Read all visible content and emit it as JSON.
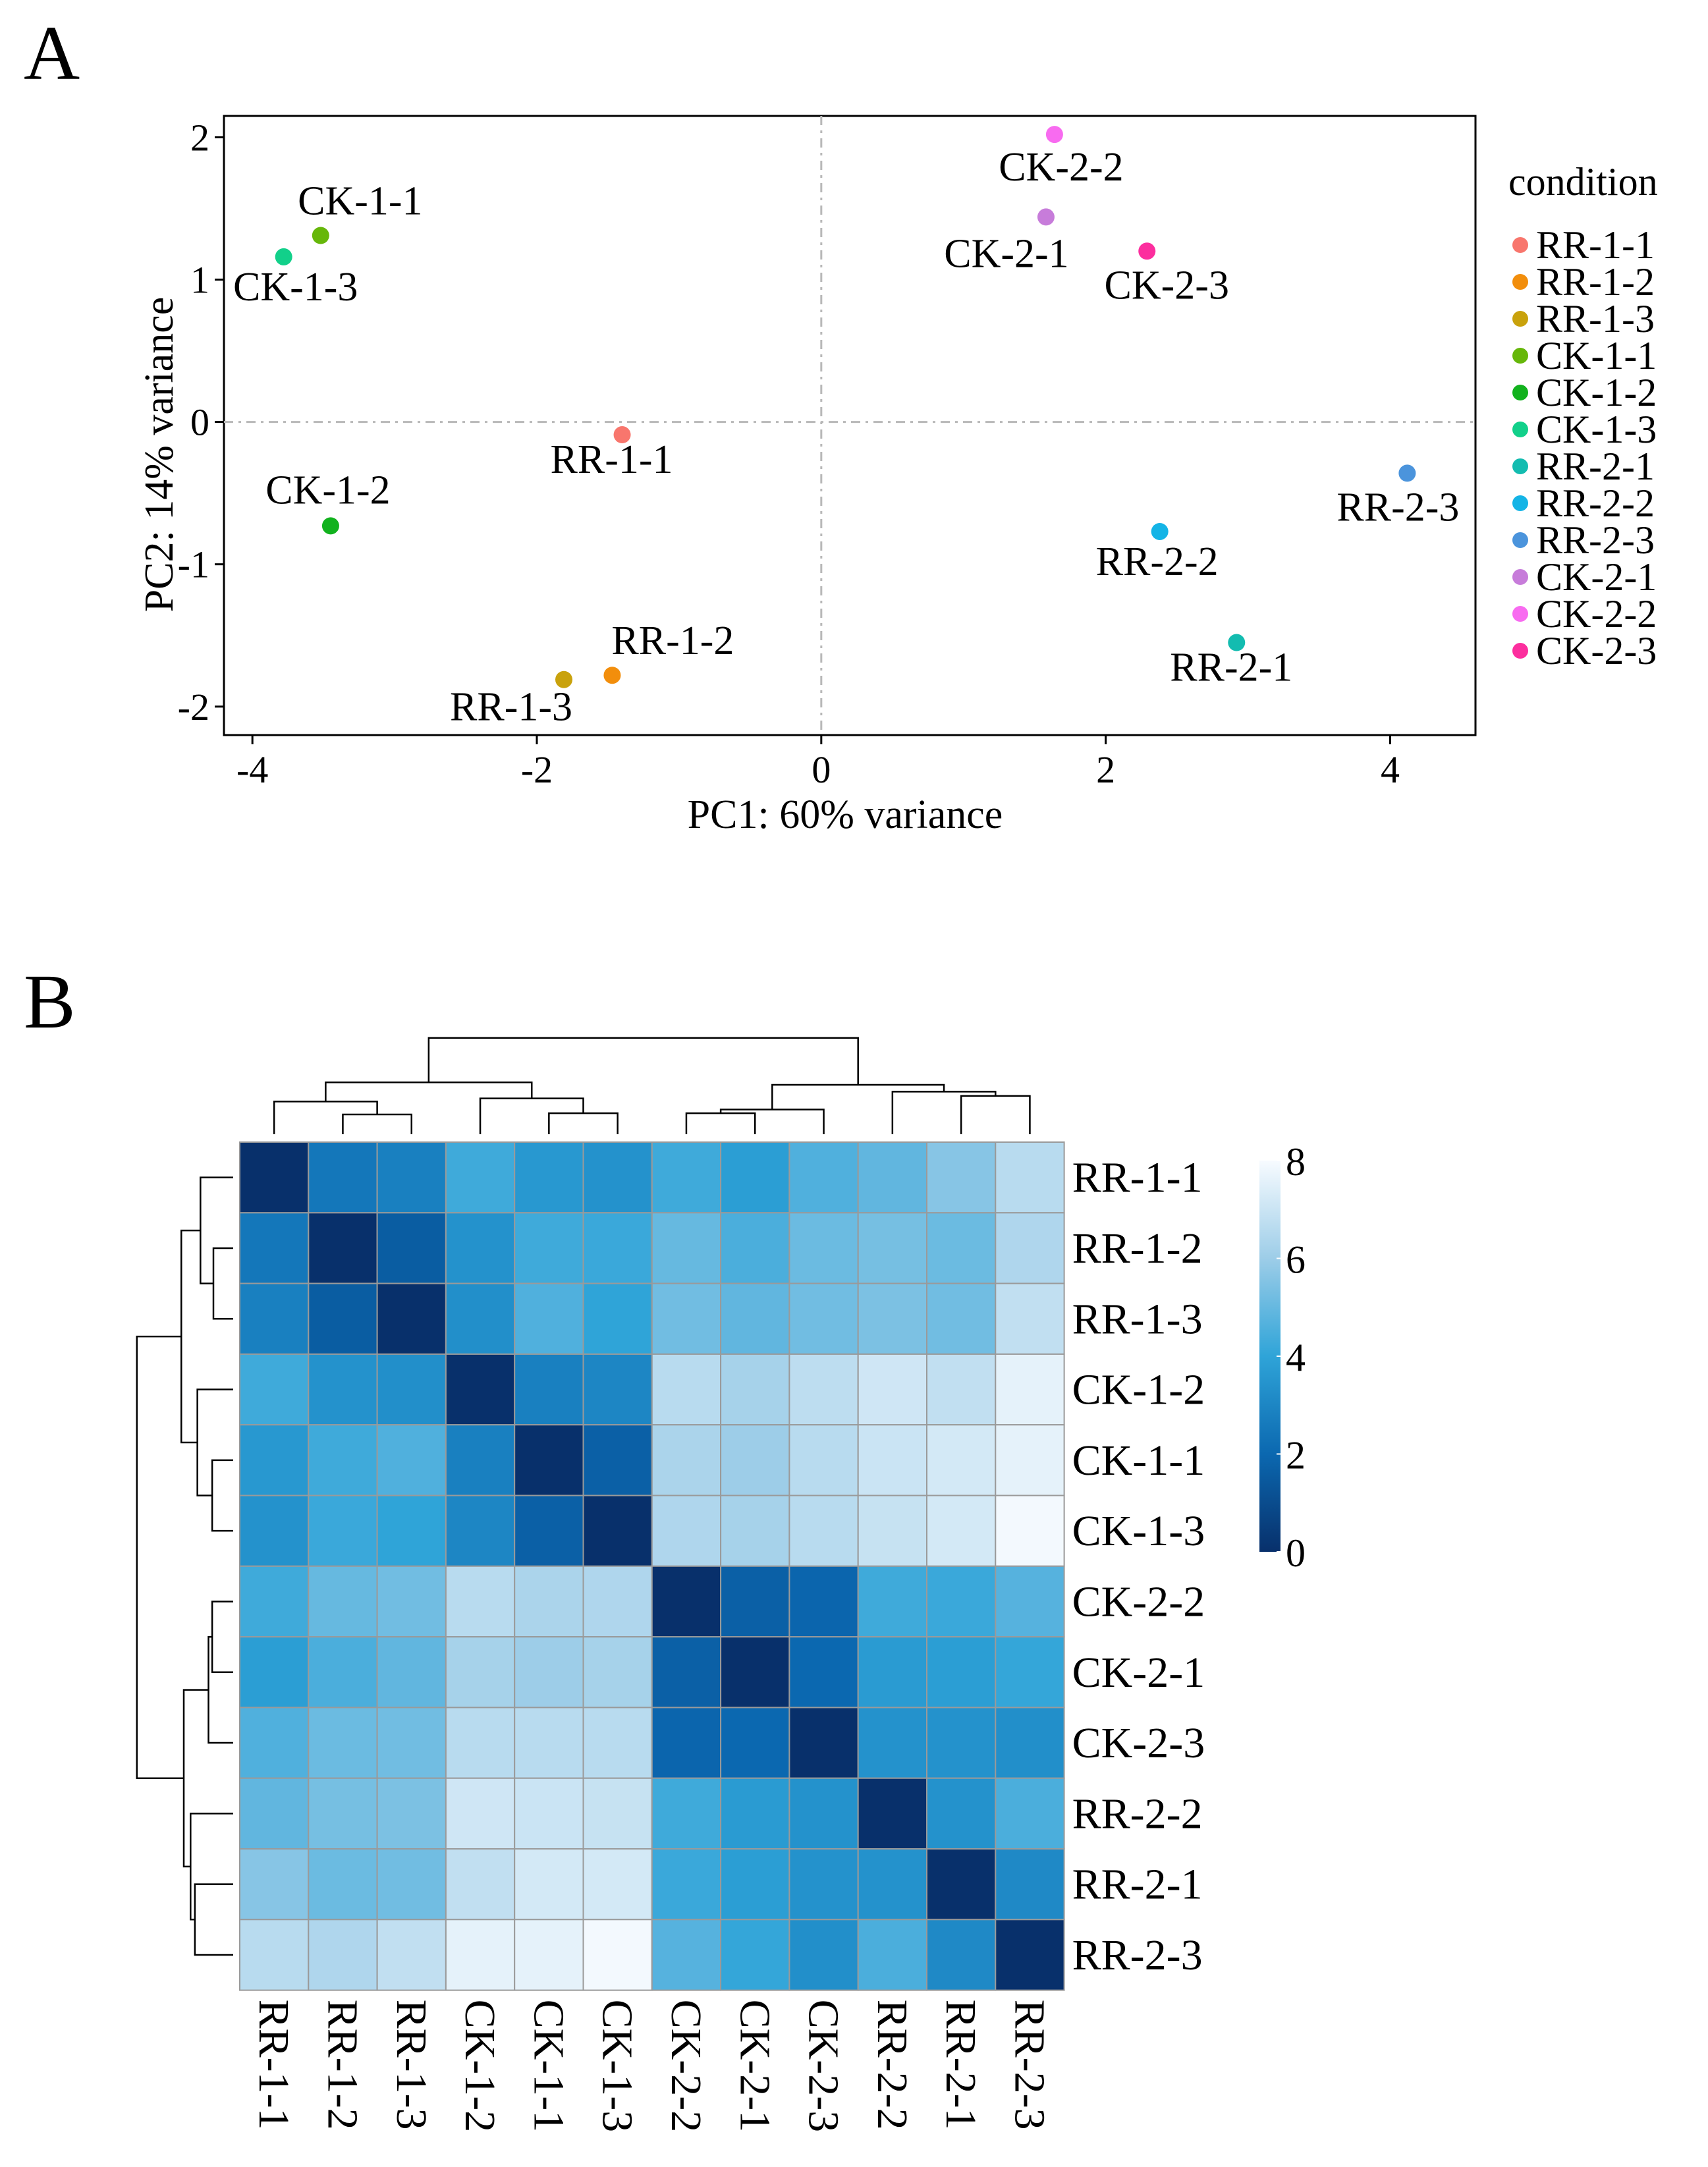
{
  "panels": {
    "a_letter": "A",
    "b_letter": "B"
  },
  "chart_data": [
    {
      "type": "scatter",
      "panel": "A",
      "xlabel": "PC1: 60% variance",
      "ylabel": "PC2: 14% variance",
      "xlim": [
        -4.2,
        4.6
      ],
      "ylim": [
        -2.2,
        2.15
      ],
      "xticks": [
        -4,
        -2,
        0,
        2,
        4
      ],
      "yticks": [
        -2,
        -1,
        0,
        1,
        2
      ],
      "legend_title": "condition",
      "points": [
        {
          "name": "RR-1-1",
          "x": -1.4,
          "y": -0.09,
          "color": "#F8766D"
        },
        {
          "name": "RR-1-2",
          "x": -1.47,
          "y": -1.78,
          "color": "#F28E0C"
        },
        {
          "name": "RR-1-3",
          "x": -1.81,
          "y": -1.81,
          "color": "#C9A20C"
        },
        {
          "name": "CK-1-1",
          "x": -3.52,
          "y": 1.31,
          "color": "#66B70A"
        },
        {
          "name": "CK-1-2",
          "x": -3.45,
          "y": -0.73,
          "color": "#12B21E"
        },
        {
          "name": "CK-1-3",
          "x": -3.78,
          "y": 1.16,
          "color": "#12D08A"
        },
        {
          "name": "RR-2-1",
          "x": 2.92,
          "y": -1.55,
          "color": "#13BCB0"
        },
        {
          "name": "RR-2-2",
          "x": 2.38,
          "y": -0.77,
          "color": "#14B4E6"
        },
        {
          "name": "RR-2-3",
          "x": 4.12,
          "y": -0.36,
          "color": "#4B94DC"
        },
        {
          "name": "CK-2-1",
          "x": 1.58,
          "y": 1.44,
          "color": "#C77CDA"
        },
        {
          "name": "CK-2-2",
          "x": 1.64,
          "y": 2.02,
          "color": "#F86BF0"
        },
        {
          "name": "CK-2-3",
          "x": 2.29,
          "y": 1.2,
          "color": "#FC2E9E"
        }
      ]
    },
    {
      "type": "heatmap",
      "panel": "B",
      "row_labels": [
        "RR-1-1",
        "RR-1-2",
        "RR-1-3",
        "CK-1-2",
        "CK-1-1",
        "CK-1-3",
        "CK-2-2",
        "CK-2-1",
        "CK-2-3",
        "RR-2-2",
        "RR-2-1",
        "RR-2-3"
      ],
      "col_labels": [
        "RR-1-1",
        "RR-1-2",
        "RR-1-3",
        "CK-1-2",
        "CK-1-1",
        "CK-1-3",
        "CK-2-2",
        "CK-2-1",
        "CK-2-3",
        "RR-2-2",
        "RR-2-1",
        "RR-2-3"
      ],
      "colorbar": {
        "min": 0,
        "max": 8,
        "ticks": [
          0,
          2,
          4,
          6,
          8
        ]
      },
      "values": [
        [
          0.0,
          2.5,
          2.8,
          4.3,
          3.6,
          3.4,
          4.3,
          3.8,
          4.6,
          4.9,
          5.6,
          6.6
        ],
        [
          2.5,
          0.0,
          1.6,
          3.4,
          4.3,
          4.2,
          5.0,
          4.5,
          5.1,
          5.3,
          5.1,
          6.4
        ],
        [
          2.8,
          1.6,
          0.0,
          3.3,
          4.6,
          4.0,
          5.2,
          4.9,
          5.2,
          5.4,
          5.2,
          6.8
        ],
        [
          4.3,
          3.4,
          3.3,
          0.0,
          2.8,
          3.0,
          6.6,
          6.2,
          6.7,
          7.1,
          6.8,
          7.6
        ],
        [
          3.6,
          4.3,
          4.6,
          2.8,
          0.0,
          1.7,
          6.3,
          6.0,
          6.6,
          7.0,
          7.2,
          7.6
        ],
        [
          3.4,
          4.2,
          4.0,
          3.0,
          1.7,
          0.0,
          6.4,
          6.2,
          6.6,
          6.9,
          7.2,
          7.9
        ],
        [
          4.3,
          5.0,
          5.2,
          6.6,
          6.3,
          6.4,
          0.0,
          1.7,
          1.9,
          4.3,
          4.2,
          4.7
        ],
        [
          3.8,
          4.5,
          4.9,
          6.2,
          6.0,
          6.2,
          1.7,
          0.0,
          2.0,
          3.7,
          3.8,
          4.1
        ],
        [
          4.6,
          5.1,
          5.2,
          6.6,
          6.6,
          6.6,
          1.9,
          2.0,
          0.0,
          3.4,
          3.4,
          3.3
        ],
        [
          4.9,
          5.3,
          5.4,
          7.1,
          7.0,
          6.9,
          4.3,
          3.7,
          3.4,
          0.0,
          3.4,
          4.5
        ],
        [
          5.6,
          5.1,
          5.2,
          6.8,
          7.2,
          7.2,
          4.2,
          3.8,
          3.4,
          3.4,
          0.0,
          3.1
        ],
        [
          6.6,
          6.4,
          6.8,
          7.6,
          7.6,
          7.9,
          4.7,
          4.1,
          3.3,
          4.5,
          3.1,
          0.0
        ]
      ],
      "row_dendrogram": {
        "leaf_order": [
          "RR-1-1",
          "RR-1-2",
          "RR-1-3",
          "CK-1-2",
          "CK-1-1",
          "CK-1-3",
          "CK-2-2",
          "CK-2-1",
          "CK-2-3",
          "RR-2-2",
          "RR-2-1",
          "RR-2-3"
        ],
        "merges": [
          {
            "a": 1,
            "b": 2,
            "height": 1.6
          },
          {
            "a": 0,
            "b": 12,
            "height": 2.65
          },
          {
            "a": 4,
            "b": 5,
            "height": 1.7
          },
          {
            "a": 3,
            "b": 14,
            "height": 2.9
          },
          {
            "a": 13,
            "b": 15,
            "height": 4.2
          },
          {
            "a": 6,
            "b": 7,
            "height": 1.7
          },
          {
            "a": 17,
            "b": 8,
            "height": 2.0
          },
          {
            "a": 10,
            "b": 11,
            "height": 3.1
          },
          {
            "a": 9,
            "b": 19,
            "height": 3.45
          },
          {
            "a": 18,
            "b": 20,
            "height": 4.0
          },
          {
            "a": 16,
            "b": 21,
            "height": 7.8
          }
        ],
        "max_height": 8.0
      }
    }
  ]
}
